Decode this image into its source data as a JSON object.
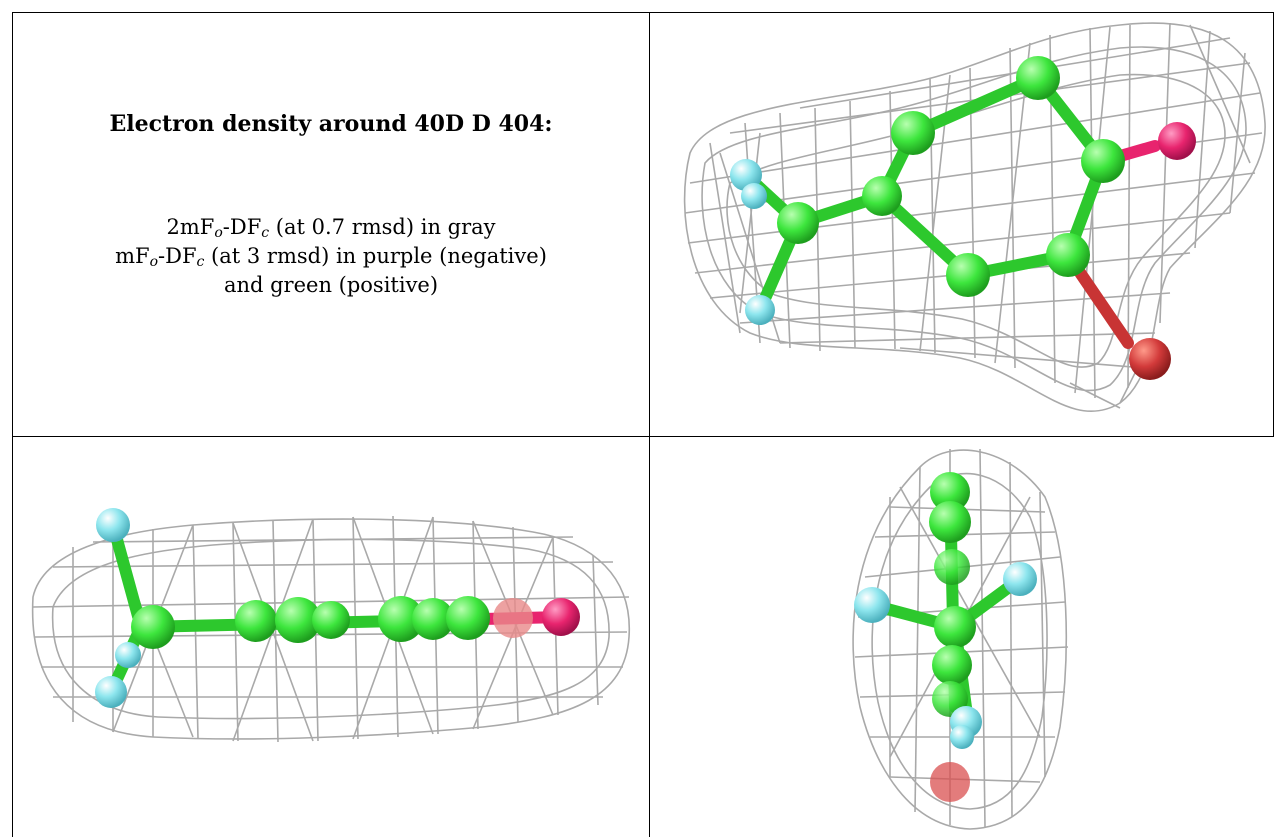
{
  "caption": {
    "title": "Electron density around 40D D 404:",
    "line1": {
      "prefix": "2mF",
      "sub1": "o",
      "mid": "-DF",
      "sub2": "c",
      "suffix": " (at 0.7 rmsd) in gray"
    },
    "line2": {
      "prefix": "mF",
      "sub1": "o",
      "mid": "-DF",
      "sub2": "c",
      "suffix": " (at 3 rmsd) in purple (negative)"
    },
    "line3": "and green (positive)"
  },
  "colors": {
    "carbon": "#3de63d",
    "fluorine": "#7fe0e8",
    "oxygen_hydroxyl": "#e8246e",
    "oxygen_other": "#d23a3a",
    "mesh_2fofc": "#a9a9a9",
    "border": "#000000"
  },
  "views": [
    {
      "name": "top-view",
      "icon": "molecule-ball-stick-icon"
    },
    {
      "name": "side-view",
      "icon": "molecule-ball-stick-icon"
    },
    {
      "name": "end-view",
      "icon": "molecule-ball-stick-icon"
    }
  ]
}
